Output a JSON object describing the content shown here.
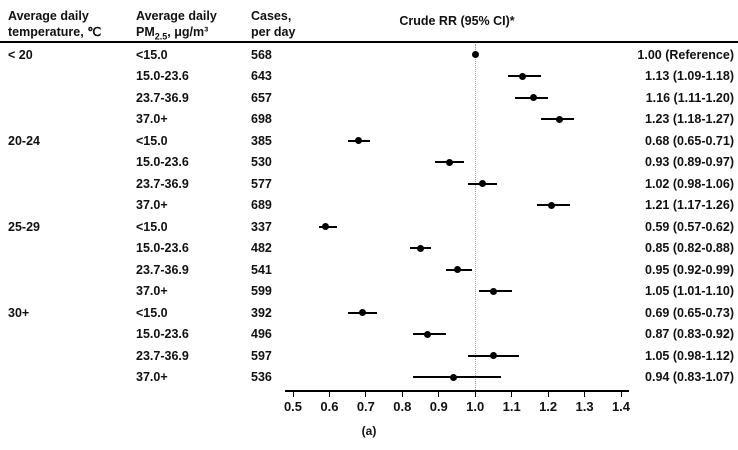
{
  "headers": {
    "temp_line1": "Average daily",
    "temp_line2": "temperature, ℃",
    "pm_line1": "Average daily",
    "pm_prefix": "PM",
    "pm_sub": "2.5",
    "pm_suffix": ", μg/m³",
    "cases_line1": "Cases,",
    "cases_line2": "per day",
    "rr_header": "Crude RR (95% CI)*"
  },
  "chart_data": {
    "type": "forest",
    "title": "Crude RR (95% CI)*",
    "caption": "(a)",
    "xlim": [
      0.5,
      1.4
    ],
    "x_ticks": [
      "0.5",
      "0.6",
      "0.7",
      "0.8",
      "0.9",
      "1.0",
      "1.1",
      "1.2",
      "1.3",
      "1.4"
    ],
    "reference_line": 1.0,
    "colors": {
      "marker": "#000000",
      "axis": "#000000",
      "refline": "#999999"
    },
    "columns": [
      "Average daily temperature, ℃",
      "Average daily PM2.5, μg/m³",
      "Cases, per day",
      "Crude RR (95% CI)*"
    ],
    "rows": [
      {
        "temp": "< 20",
        "pm": "<15.0",
        "cases": "568",
        "rr": 1.0,
        "lo": null,
        "hi": null,
        "label": "1.00 (Reference)"
      },
      {
        "temp": "",
        "pm": "15.0-23.6",
        "cases": "643",
        "rr": 1.13,
        "lo": 1.09,
        "hi": 1.18,
        "label": "1.13 (1.09-1.18)"
      },
      {
        "temp": "",
        "pm": "23.7-36.9",
        "cases": "657",
        "rr": 1.16,
        "lo": 1.11,
        "hi": 1.2,
        "label": "1.16 (1.11-1.20)"
      },
      {
        "temp": "",
        "pm": "37.0+",
        "cases": "698",
        "rr": 1.23,
        "lo": 1.18,
        "hi": 1.27,
        "label": "1.23 (1.18-1.27)"
      },
      {
        "temp": "20-24",
        "pm": "<15.0",
        "cases": "385",
        "rr": 0.68,
        "lo": 0.65,
        "hi": 0.71,
        "label": "0.68 (0.65-0.71)"
      },
      {
        "temp": "",
        "pm": "15.0-23.6",
        "cases": "530",
        "rr": 0.93,
        "lo": 0.89,
        "hi": 0.97,
        "label": "0.93 (0.89-0.97)"
      },
      {
        "temp": "",
        "pm": "23.7-36.9",
        "cases": "577",
        "rr": 1.02,
        "lo": 0.98,
        "hi": 1.06,
        "label": "1.02 (0.98-1.06)"
      },
      {
        "temp": "",
        "pm": "37.0+",
        "cases": "689",
        "rr": 1.21,
        "lo": 1.17,
        "hi": 1.26,
        "label": "1.21 (1.17-1.26)"
      },
      {
        "temp": "25-29",
        "pm": "<15.0",
        "cases": "337",
        "rr": 0.59,
        "lo": 0.57,
        "hi": 0.62,
        "label": "0.59 (0.57-0.62)"
      },
      {
        "temp": "",
        "pm": "15.0-23.6",
        "cases": "482",
        "rr": 0.85,
        "lo": 0.82,
        "hi": 0.88,
        "label": "0.85 (0.82-0.88)"
      },
      {
        "temp": "",
        "pm": "23.7-36.9",
        "cases": "541",
        "rr": 0.95,
        "lo": 0.92,
        "hi": 0.99,
        "label": "0.95 (0.92-0.99)"
      },
      {
        "temp": "",
        "pm": "37.0+",
        "cases": "599",
        "rr": 1.05,
        "lo": 1.01,
        "hi": 1.1,
        "label": "1.05 (1.01-1.10)"
      },
      {
        "temp": "30+",
        "pm": "<15.0",
        "cases": "392",
        "rr": 0.69,
        "lo": 0.65,
        "hi": 0.73,
        "label": "0.69 (0.65-0.73)"
      },
      {
        "temp": "",
        "pm": "15.0-23.6",
        "cases": "496",
        "rr": 0.87,
        "lo": 0.83,
        "hi": 0.92,
        "label": "0.87 (0.83-0.92)"
      },
      {
        "temp": "",
        "pm": "23.7-36.9",
        "cases": "597",
        "rr": 1.05,
        "lo": 0.98,
        "hi": 1.12,
        "label": "1.05 (0.98-1.12)"
      },
      {
        "temp": "",
        "pm": "37.0+",
        "cases": "536",
        "rr": 0.94,
        "lo": 0.83,
        "hi": 1.07,
        "label": "0.94 (0.83-1.07)"
      }
    ]
  }
}
